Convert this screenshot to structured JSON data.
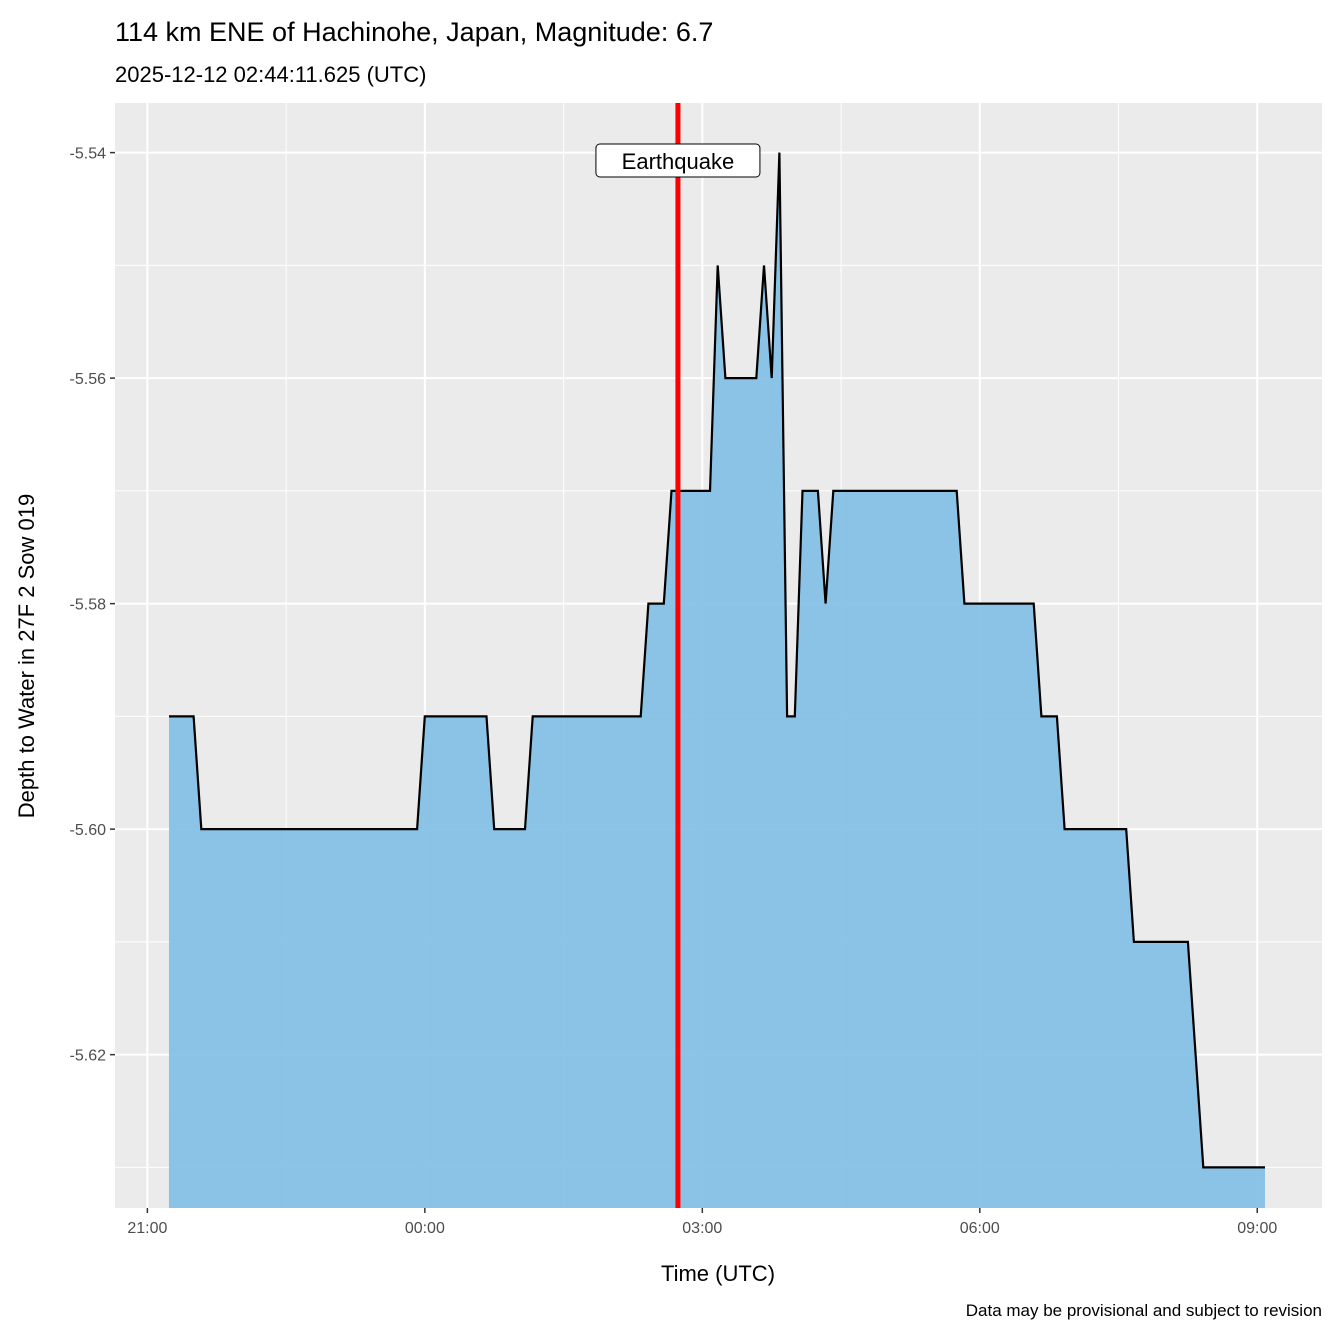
{
  "chart_data": {
    "type": "area",
    "title": "114 km ENE of Hachinohe, Japan, Magnitude: 6.7",
    "subtitle": "2025-12-12 02:44:11.625 (UTC)",
    "xlabel": "Time (UTC)",
    "ylabel": "Depth to Water in 27F 2 Sow 019",
    "caption": "Data may be provisional and subject to revision",
    "xlim": [
      "2025-12-11 20:39",
      "2025-12-12 09:42"
    ],
    "ylim": [
      -5.6336,
      -5.5356
    ],
    "x_ticks": [
      {
        "t": "2025-12-11 21:00",
        "label": "21:00"
      },
      {
        "t": "2025-12-12 00:00",
        "label": "00:00"
      },
      {
        "t": "2025-12-12 03:00",
        "label": "03:00"
      },
      {
        "t": "2025-12-12 06:00",
        "label": "06:00"
      },
      {
        "t": "2025-12-12 09:00",
        "label": "09:00"
      }
    ],
    "y_ticks": [
      {
        "v": -5.54,
        "label": "-5.54"
      },
      {
        "v": -5.56,
        "label": "-5.56"
      },
      {
        "v": -5.58,
        "label": "-5.58"
      },
      {
        "v": -5.6,
        "label": "-5.60"
      },
      {
        "v": -5.62,
        "label": "-5.62"
      }
    ],
    "grid": true,
    "fill_color": "#85C1E6",
    "line_color": "#000000",
    "event": {
      "t": "2025-12-12 02:44:11",
      "label": "Earthquake",
      "color": "#FF0000"
    },
    "points": [
      [
        "2025-12-11 21:14",
        -5.59
      ],
      [
        "2025-12-11 21:30",
        -5.59
      ],
      [
        "2025-12-11 21:35",
        -5.6
      ],
      [
        "2025-12-11 23:55",
        -5.6
      ],
      [
        "2025-12-12 00:00",
        -5.59
      ],
      [
        "2025-12-12 00:40",
        -5.59
      ],
      [
        "2025-12-12 00:45",
        -5.6
      ],
      [
        "2025-12-12 01:05",
        -5.6
      ],
      [
        "2025-12-12 01:10",
        -5.59
      ],
      [
        "2025-12-12 02:20",
        -5.59
      ],
      [
        "2025-12-12 02:25",
        -5.58
      ],
      [
        "2025-12-12 02:35",
        -5.58
      ],
      [
        "2025-12-12 02:40",
        -5.57
      ],
      [
        "2025-12-12 03:05",
        -5.57
      ],
      [
        "2025-12-12 03:10",
        -5.55
      ],
      [
        "2025-12-12 03:15",
        -5.56
      ],
      [
        "2025-12-12 03:35",
        -5.56
      ],
      [
        "2025-12-12 03:40",
        -5.55
      ],
      [
        "2025-12-12 03:45",
        -5.56
      ],
      [
        "2025-12-12 03:50",
        -5.54
      ],
      [
        "2025-12-12 03:55",
        -5.59
      ],
      [
        "2025-12-12 04:00",
        -5.59
      ],
      [
        "2025-12-12 04:05",
        -5.57
      ],
      [
        "2025-12-12 04:15",
        -5.57
      ],
      [
        "2025-12-12 04:20",
        -5.58
      ],
      [
        "2025-12-12 04:25",
        -5.57
      ],
      [
        "2025-12-12 05:45",
        -5.57
      ],
      [
        "2025-12-12 05:50",
        -5.58
      ],
      [
        "2025-12-12 06:35",
        -5.58
      ],
      [
        "2025-12-12 06:40",
        -5.59
      ],
      [
        "2025-12-12 06:50",
        -5.59
      ],
      [
        "2025-12-12 06:55",
        -5.6
      ],
      [
        "2025-12-12 07:35",
        -5.6
      ],
      [
        "2025-12-12 07:40",
        -5.61
      ],
      [
        "2025-12-12 08:15",
        -5.61
      ],
      [
        "2025-12-12 08:25",
        -5.63
      ],
      [
        "2025-12-12 09:05",
        -5.63
      ]
    ]
  }
}
